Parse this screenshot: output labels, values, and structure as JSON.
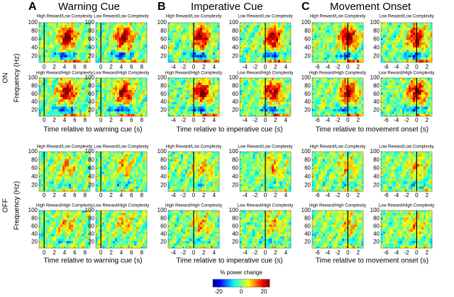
{
  "panels": [
    {
      "letter": "A",
      "title": "Warning Cue",
      "xlabel": "Time relative to warning cue (s)",
      "xlim": [
        -1,
        9
      ],
      "xticks": [
        0,
        2,
        4,
        6,
        8
      ]
    },
    {
      "letter": "B",
      "title": "Imperative Cue",
      "xlabel": "Time relative to imperative cue (s)",
      "xlim": [
        -5,
        5
      ],
      "xticks": [
        -4,
        -2,
        0,
        2,
        4
      ]
    },
    {
      "letter": "C",
      "title": "Movement Onset",
      "xlabel": "Time relative to movement onset (s)",
      "xlim": [
        -7,
        3
      ],
      "xticks": [
        -6,
        -4,
        -2,
        0,
        2
      ]
    }
  ],
  "subplot_titles": [
    [
      "High Reward/Low Complexity",
      "Low Reward/Low Complexity"
    ],
    [
      "High Reward/High Complexity",
      "Low Reward/High Complexity"
    ]
  ],
  "conditions": [
    "ON",
    "OFF"
  ],
  "yaxis": {
    "label": "Frequency (Hz)",
    "ylim": [
      5,
      100
    ],
    "yticks": [
      20,
      40,
      60,
      80,
      100
    ]
  },
  "colorbar": {
    "label": "% power change",
    "lim": [
      -25,
      25
    ],
    "ticks": [
      -20,
      0,
      20
    ]
  }
}
